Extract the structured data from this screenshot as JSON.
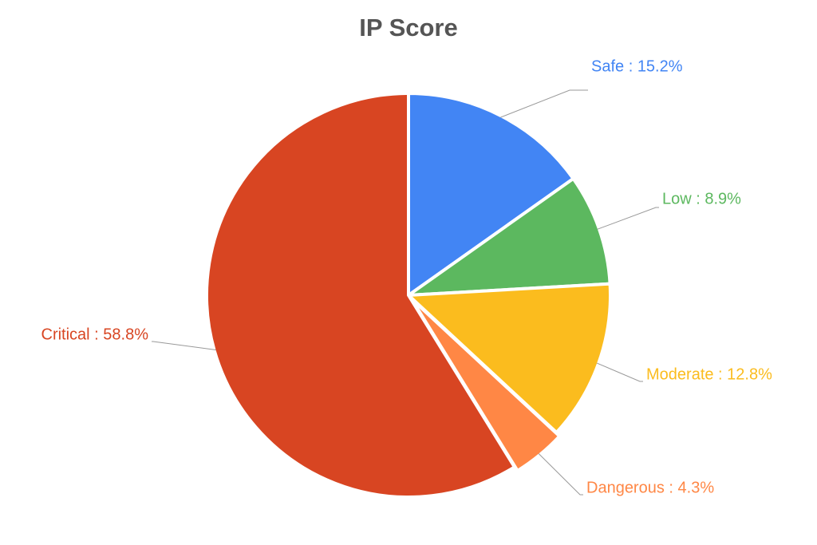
{
  "chart_data": {
    "type": "pie",
    "title": "IP Score",
    "values": [
      15.2,
      8.9,
      12.8,
      4.3,
      58.8
    ],
    "value_labels": [
      "Safe : 15.2%",
      "Low : 8.9%",
      "Moderate : 12.8%",
      "Dangerous : 4.3%",
      "Critical : 58.8%"
    ],
    "colors": [
      "#4285f4",
      "#5cb85f",
      "#fbbc1e",
      "#ff8745",
      "#d84522"
    ]
  }
}
